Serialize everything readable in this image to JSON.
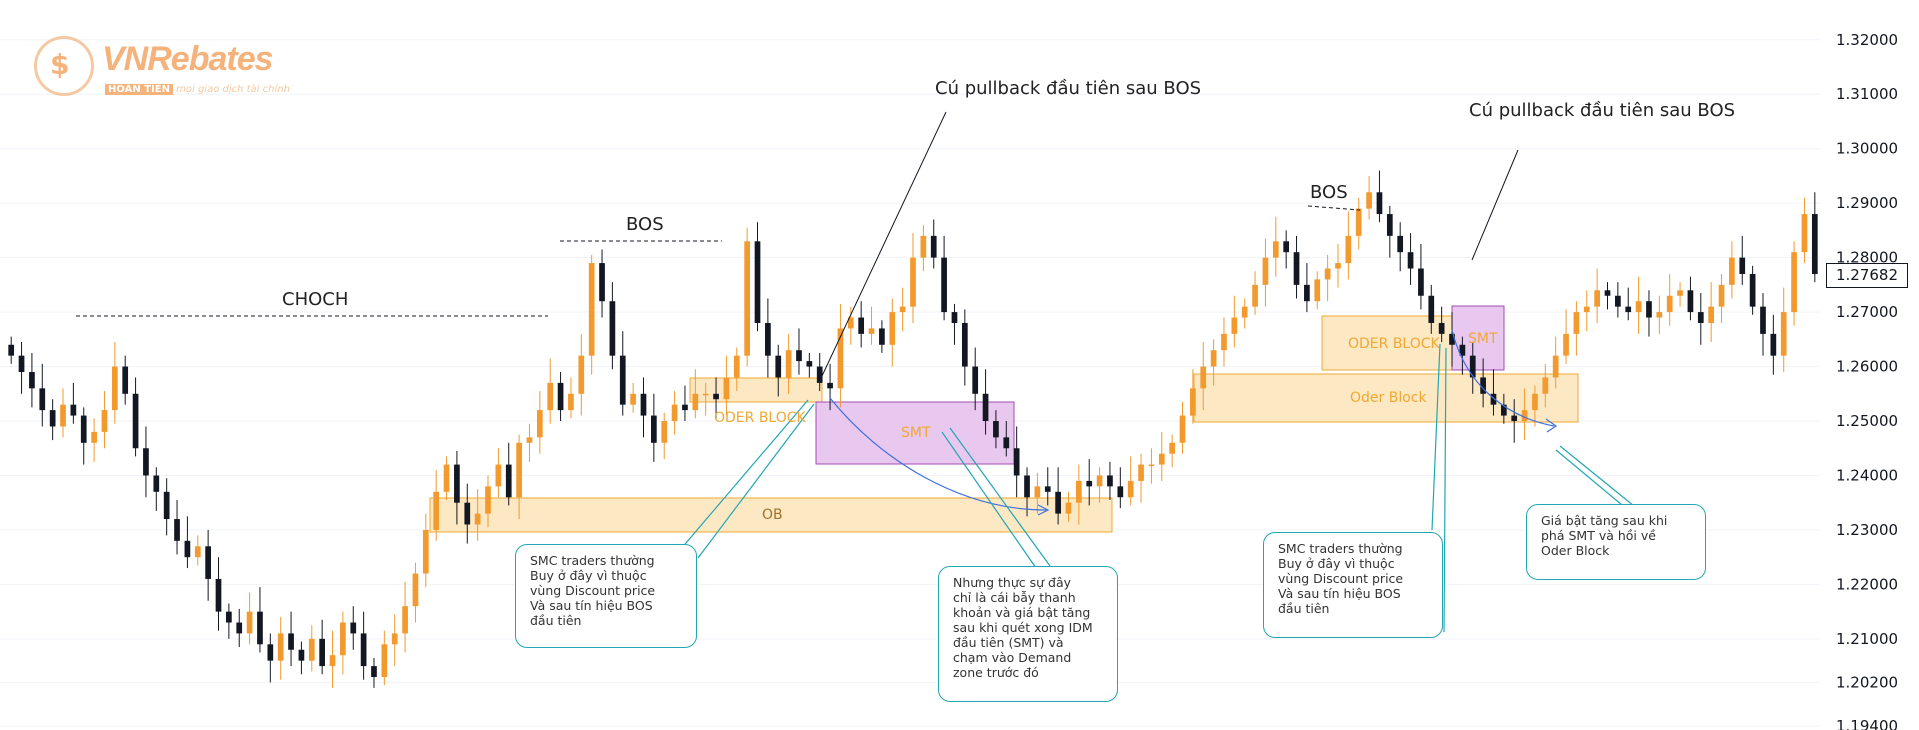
{
  "watermark": {
    "brand": "VNRebates",
    "tag": "HOÀN TIỀN",
    "tagline": "mọi giao dịch tài chính"
  },
  "colors": {
    "candle": "#f29a2e",
    "candle_dark": "#131722",
    "order_block_fill": "#fde8c4",
    "order_block_border": "#f0a832",
    "smt_fill": "#e8c8ee",
    "smt_border": "#a24bb0",
    "note_border": "#22a6b3",
    "arrow": "#3d6fe0"
  },
  "labels": {
    "choch": "CHOCH",
    "bos_left": "BOS",
    "bos_right": "BOS",
    "pullback_left": "Cú pullback đầu tiên sau BOS",
    "pullback_right": "Cú pullback đầu tiên sau BOS",
    "oder_block_left": "ODER BLOCK",
    "ob": "OB",
    "smt_left": "SMT",
    "oder_block_right": "ODER BLOCK",
    "smt_right": "SMT",
    "order_block_right": "Oder Block"
  },
  "notes": {
    "note1": "SMC traders thường\nBuy ở đây vì thuộc\nvùng Discount price\nVà sau tín hiệu BOS\nđầu tiên",
    "note2": "Nhưng thực sự đây\nchỉ là cái bẫy thanh\nkhoản và giá bật tăng\nsau khi quét xong IDM\nđầu tiên (SMT) và\nchạm vào Demand\nzone trước đó",
    "note3": "SMC traders thường\nBuy ở đây vì thuộc\nvùng Discount price\nVà sau tín hiệu BOS\nđầu tiên",
    "note4": "Giá bật tăng sau khi\nphá SMT và hồi về\nOder Block"
  },
  "chart_data": {
    "type": "candlestick",
    "y_axis": {
      "ticks": [
        "1.32000",
        "1.31000",
        "1.30000",
        "1.29000",
        "1.28000",
        "1.27000",
        "1.26000",
        "1.25000",
        "1.24000",
        "1.23000",
        "1.22000",
        "1.21000",
        "1.20200",
        "1.19400"
      ],
      "range": [
        1.194,
        1.324
      ]
    },
    "current_price": "1.27682",
    "grid": true,
    "close_series": [
      1.262,
      1.259,
      1.256,
      1.252,
      1.249,
      1.253,
      1.251,
      1.246,
      1.248,
      1.252,
      1.26,
      1.255,
      1.245,
      1.24,
      1.237,
      1.232,
      1.228,
      1.225,
      1.227,
      1.221,
      1.215,
      1.213,
      1.211,
      1.215,
      1.209,
      1.206,
      1.211,
      1.208,
      1.206,
      1.21,
      1.205,
      1.207,
      1.213,
      1.211,
      1.205,
      1.203,
      1.209,
      1.211,
      1.216,
      1.222,
      1.23,
      1.237,
      1.242,
      1.235,
      1.231,
      1.233,
      1.238,
      1.242,
      1.236,
      1.246,
      1.247,
      1.252,
      1.257,
      1.252,
      1.255,
      1.262,
      1.279,
      1.272,
      1.262,
      1.253,
      1.255,
      1.251,
      1.246,
      1.25,
      1.253,
      1.252,
      1.255,
      1.255,
      1.254,
      1.258,
      1.262,
      1.283,
      1.268,
      1.262,
      1.258,
      1.263,
      1.261,
      1.26,
      1.257,
      1.256,
      1.267,
      1.269,
      1.266,
      1.267,
      1.264,
      1.27,
      1.271,
      1.28,
      1.284,
      1.28,
      1.27,
      1.268,
      1.26,
      1.255,
      1.25,
      1.247,
      1.245,
      1.24,
      1.236,
      1.238,
      1.237,
      1.233,
      1.235,
      1.239,
      1.238,
      1.24,
      1.238,
      1.236,
      1.239,
      1.242,
      1.242,
      1.244,
      1.246,
      1.251,
      1.256,
      1.26,
      1.263,
      1.266,
      1.269,
      1.271,
      1.275,
      1.28,
      1.283,
      1.281,
      1.275,
      1.272,
      1.276,
      1.278,
      1.279,
      1.284,
      1.289,
      1.292,
      1.288,
      1.284,
      1.281,
      1.278,
      1.273,
      1.268,
      1.266,
      1.264,
      1.262,
      1.258,
      1.255,
      1.253,
      1.251,
      1.25,
      1.252,
      1.255,
      1.258,
      1.262,
      1.266,
      1.27,
      1.271,
      1.274,
      1.273,
      1.271,
      1.27,
      1.272,
      1.269,
      1.27,
      1.273,
      1.274,
      1.27,
      1.268,
      1.271,
      1.275,
      1.28,
      1.277,
      1.271,
      1.266,
      1.262,
      1.27,
      1.281,
      1.288,
      1.277
    ]
  }
}
